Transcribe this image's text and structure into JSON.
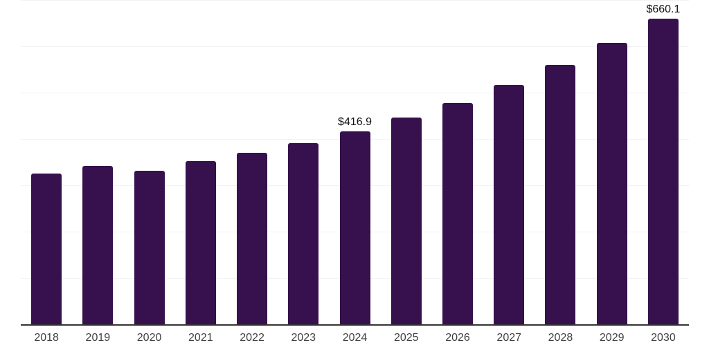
{
  "chart_data": {
    "type": "bar",
    "title": "",
    "xlabel": "",
    "ylabel": "",
    "categories": [
      "2018",
      "2019",
      "2020",
      "2021",
      "2022",
      "2023",
      "2024",
      "2025",
      "2026",
      "2027",
      "2028",
      "2029",
      "2030"
    ],
    "values": [
      325.8,
      342.2,
      331.6,
      351.8,
      369.7,
      391.4,
      416.9,
      446.2,
      478.1,
      516.0,
      559.1,
      607.8,
      660.1
    ],
    "annotations": {
      "2024": "$416.9",
      "2030": "$660.1"
    },
    "ylim": [
      0,
      700
    ],
    "grid_step": 100,
    "grid": true,
    "legend_position": "none",
    "y_axis_tick_labels_visible": false,
    "colors": {
      "bar": "#36114d",
      "axis_line": "#333333",
      "gridline": "#f2f2f2",
      "tick_label": "#404040",
      "annotation": "#111111",
      "background": "#ffffff"
    }
  }
}
